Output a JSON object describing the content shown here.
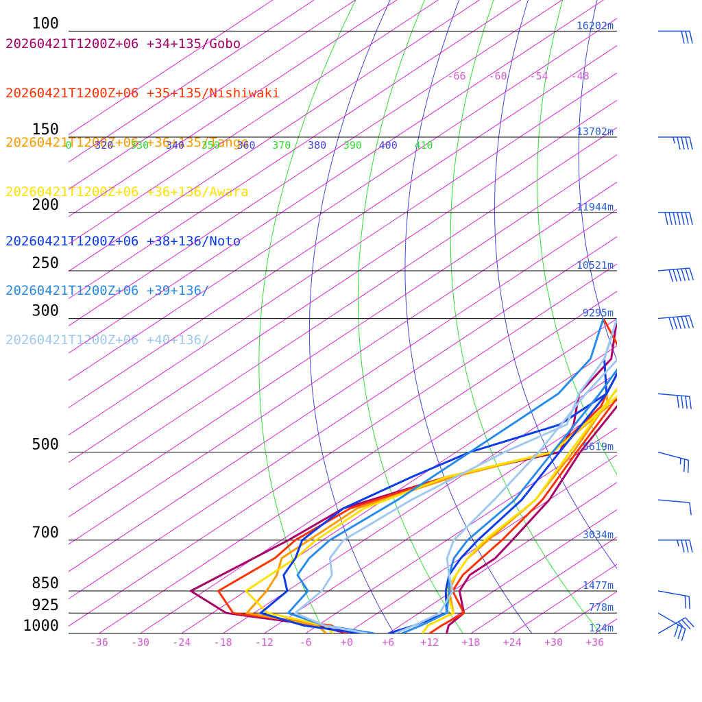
{
  "legend": [
    {
      "label": "20260421T1200Z+06 +34+135/Gobo",
      "color": "#a8006a"
    },
    {
      "label": "20260421T1200Z+06 +35+135/Nishiwaki",
      "color": "#ff3300"
    },
    {
      "label": "20260421T1200Z+06 +36+135/Tango",
      "color": "#ff9a00"
    },
    {
      "label": "20260421T1200Z+06 +36+136/Awara",
      "color": "#ffe000"
    },
    {
      "label": "20260421T1200Z+06 +38+136/Noto",
      "color": "#0a3ce8"
    },
    {
      "label": "20260421T1200Z+06 +39+136/",
      "color": "#2a8ce8"
    },
    {
      "label": "20260421T1200Z+06 +40+136/",
      "color": "#a0c8f0"
    }
  ],
  "chart_data": {
    "type": "line",
    "subtype": "skew-T log-P sounding",
    "pressure_levels": [
      {
        "p": 100,
        "label": "100",
        "height": "16202m"
      },
      {
        "p": 150,
        "label": "150",
        "height": "13702m"
      },
      {
        "p": 200,
        "label": "200",
        "height": "11944m"
      },
      {
        "p": 250,
        "label": "250",
        "height": "10521m"
      },
      {
        "p": 300,
        "label": "300",
        "height": "9295m"
      },
      {
        "p": 500,
        "label": "500",
        "height": "5619m"
      },
      {
        "p": 700,
        "label": "700",
        "height": "3034m"
      },
      {
        "p": 850,
        "label": "850",
        "height": "1477m"
      },
      {
        "p": 925,
        "label": "925",
        "height": "778m"
      },
      {
        "p": 1000,
        "label": "1000",
        "height": "124m"
      }
    ],
    "x_ticks": [
      "-36",
      "-30",
      "-24",
      "-18",
      "-12",
      "-6",
      "+0",
      "+6",
      "+12",
      "+18",
      "+24",
      "+30",
      "+36"
    ],
    "x_tick_values": [
      -36,
      -30,
      -24,
      -18,
      -12,
      -6,
      0,
      6,
      12,
      18,
      24,
      30,
      36
    ],
    "upper_temp_labels": [
      "-66",
      "-60",
      "-54",
      "-48"
    ],
    "theta_labels": [
      {
        "text": "0",
        "color": "#33dd33"
      },
      {
        "text": "320",
        "color": "#4444dd"
      },
      {
        "text": "330",
        "color": "#33dd33"
      },
      {
        "text": "340",
        "color": "#4444dd"
      },
      {
        "text": "350",
        "color": "#33dd33"
      },
      {
        "text": "360",
        "color": "#4444dd"
      },
      {
        "text": "370",
        "color": "#33dd33"
      },
      {
        "text": "380",
        "color": "#4444dd"
      },
      {
        "text": "390",
        "color": "#33dd33"
      },
      {
        "text": "400",
        "color": "#4444dd"
      },
      {
        "text": "410",
        "color": "#33dd33"
      }
    ],
    "xlim": [
      -40,
      40
    ],
    "ylim": [
      1000,
      100
    ],
    "skew_deg_per_decade_ln": 57.5,
    "series": [
      {
        "name": "20260421T1200Z+06 +34+135/Gobo",
        "color": "#a8006a",
        "temp_profile": [
          [
            1000,
            14.5
          ],
          [
            970,
            13
          ],
          [
            925,
            12.5
          ],
          [
            850,
            7
          ],
          [
            800,
            5
          ],
          [
            750,
            5
          ],
          [
            700,
            3.5
          ],
          [
            600,
            0
          ],
          [
            500,
            -6
          ],
          [
            400,
            -12
          ],
          [
            350,
            -15
          ],
          [
            300,
            -20
          ],
          [
            250,
            -28
          ],
          [
            200,
            -38
          ],
          [
            170,
            -47
          ],
          [
            150,
            -49
          ],
          [
            110,
            -62
          ],
          [
            100,
            -64
          ],
          [
            90,
            -69
          ],
          [
            80,
            -72
          ],
          [
            70,
            -76
          ],
          [
            60,
            -78
          ],
          [
            55,
            -82
          ],
          [
            52,
            -84
          ]
        ],
        "dew_profile": [
          [
            1000,
            0
          ],
          [
            970,
            -6
          ],
          [
            925,
            -22
          ],
          [
            850,
            -32
          ],
          [
            700,
            -29
          ],
          [
            620,
            -28
          ],
          [
            550,
            -20
          ],
          [
            500,
            -9
          ],
          [
            450,
            -13
          ],
          [
            400,
            -19
          ],
          [
            350,
            -22
          ],
          [
            300,
            -30
          ]
        ]
      },
      {
        "name": "20260421T1200Z+06 +35+135/Nishiwaki",
        "color": "#ff3300",
        "temp_profile": [
          [
            1000,
            12
          ],
          [
            970,
            12
          ],
          [
            925,
            12.5
          ],
          [
            850,
            6
          ],
          [
            800,
            4
          ],
          [
            750,
            3
          ],
          [
            700,
            2
          ],
          [
            600,
            -1
          ],
          [
            500,
            -6.5
          ],
          [
            400,
            -13
          ],
          [
            350,
            -16
          ],
          [
            300,
            -21
          ],
          [
            250,
            -29
          ],
          [
            200,
            -39
          ],
          [
            175,
            -48
          ],
          [
            150,
            -50
          ],
          [
            110,
            -62
          ],
          [
            100,
            -65
          ],
          [
            90,
            -70
          ],
          [
            80,
            -73
          ],
          [
            70,
            -76
          ],
          [
            60,
            -79
          ],
          [
            55,
            -82
          ],
          [
            52,
            -84
          ]
        ],
        "dew_profile": [
          [
            1000,
            0
          ],
          [
            970,
            -4
          ],
          [
            925,
            -21
          ],
          [
            850,
            -28
          ],
          [
            750,
            -27
          ],
          [
            700,
            -28
          ],
          [
            620,
            -27
          ],
          [
            550,
            -20
          ],
          [
            500,
            -10
          ],
          [
            420,
            -13
          ],
          [
            400,
            -15
          ],
          [
            350,
            -20
          ],
          [
            300,
            -32
          ]
        ]
      },
      {
        "name": "20260421T1200Z+06 +36+135/Tango",
        "color": "#ff9a00",
        "temp_profile": [
          [
            1000,
            11
          ],
          [
            970,
            10
          ],
          [
            925,
            11
          ],
          [
            850,
            5.5
          ],
          [
            800,
            3
          ],
          [
            750,
            1
          ],
          [
            700,
            0
          ],
          [
            600,
            -2
          ],
          [
            500,
            -7
          ],
          [
            400,
            -14
          ],
          [
            350,
            -17
          ],
          [
            300,
            -22
          ],
          [
            250,
            -30
          ],
          [
            200,
            -39
          ],
          [
            170,
            -47
          ],
          [
            150,
            -50
          ],
          [
            110,
            -63
          ],
          [
            100,
            -66
          ],
          [
            90,
            -71
          ],
          [
            80,
            -74
          ],
          [
            70,
            -77
          ],
          [
            60,
            -80
          ],
          [
            55,
            -82
          ],
          [
            52,
            -84
          ]
        ],
        "dew_profile": [
          [
            1000,
            -3
          ],
          [
            970,
            -6
          ],
          [
            925,
            -19
          ],
          [
            850,
            -21
          ],
          [
            800,
            -23
          ],
          [
            750,
            -26
          ],
          [
            700,
            -26
          ],
          [
            620,
            -26
          ],
          [
            550,
            -19
          ],
          [
            500,
            -10
          ],
          [
            420,
            -12
          ],
          [
            400,
            -15
          ],
          [
            350,
            -20
          ],
          [
            300,
            -28
          ]
        ]
      },
      {
        "name": "20260421T1200Z+06 +36+136/Awara",
        "color": "#ffe000",
        "temp_profile": [
          [
            1000,
            11
          ],
          [
            970,
            10
          ],
          [
            925,
            11
          ],
          [
            850,
            5
          ],
          [
            800,
            3
          ],
          [
            750,
            1
          ],
          [
            700,
            -0.5
          ],
          [
            600,
            -2
          ],
          [
            500,
            -7.5
          ],
          [
            400,
            -14
          ],
          [
            350,
            -18
          ],
          [
            300,
            -22
          ],
          [
            250,
            -30
          ],
          [
            200,
            -39
          ],
          [
            175,
            -47
          ],
          [
            150,
            -49
          ],
          [
            110,
            -63
          ],
          [
            100,
            -67
          ],
          [
            90,
            -72
          ],
          [
            80,
            -75
          ],
          [
            70,
            -78
          ],
          [
            60,
            -80
          ],
          [
            55,
            -83
          ],
          [
            52,
            -85
          ]
        ],
        "dew_profile": [
          [
            1000,
            -2
          ],
          [
            970,
            -5
          ],
          [
            925,
            -16
          ],
          [
            850,
            -24
          ],
          [
            750,
            -24
          ],
          [
            700,
            -25
          ],
          [
            620,
            -25
          ],
          [
            550,
            -20
          ],
          [
            500,
            -10
          ],
          [
            400,
            -13
          ],
          [
            350,
            -19
          ],
          [
            300,
            -27
          ]
        ]
      },
      {
        "name": "20260421T1200Z+06 +38+136/Noto",
        "color": "#0a3ce8",
        "temp_profile": [
          [
            1000,
            6
          ],
          [
            970,
            8
          ],
          [
            925,
            10
          ],
          [
            850,
            5
          ],
          [
            800,
            2
          ],
          [
            750,
            0
          ],
          [
            700,
            -1.5
          ],
          [
            600,
            -4
          ],
          [
            500,
            -9
          ],
          [
            400,
            -15
          ],
          [
            350,
            -20
          ],
          [
            300,
            -24
          ],
          [
            250,
            -32
          ],
          [
            200,
            -40
          ],
          [
            175,
            -48
          ],
          [
            150,
            -51
          ],
          [
            110,
            -63
          ],
          [
            100,
            -65
          ],
          [
            90,
            -68
          ],
          [
            80,
            -70
          ],
          [
            70,
            -73
          ],
          [
            60,
            -76
          ],
          [
            55,
            -80
          ],
          [
            52,
            -82
          ]
        ],
        "dew_profile": [
          [
            1000,
            2
          ],
          [
            970,
            -8
          ],
          [
            925,
            -17
          ],
          [
            850,
            -18
          ],
          [
            800,
            -22
          ],
          [
            750,
            -24
          ],
          [
            700,
            -27
          ],
          [
            620,
            -28
          ],
          [
            550,
            -25
          ],
          [
            500,
            -22
          ],
          [
            450,
            -15
          ],
          [
            400,
            -15
          ],
          [
            350,
            -23
          ],
          [
            300,
            -30
          ]
        ]
      },
      {
        "name": "20260421T1200Z+06 +39+136/",
        "color": "#2a8ce8",
        "temp_profile": [
          [
            1000,
            8
          ],
          [
            970,
            9
          ],
          [
            925,
            10
          ],
          [
            850,
            5.5
          ],
          [
            800,
            2
          ],
          [
            750,
            -1
          ],
          [
            700,
            -3
          ],
          [
            600,
            -5
          ],
          [
            500,
            -10
          ],
          [
            400,
            -16
          ],
          [
            350,
            -20
          ],
          [
            300,
            -25
          ],
          [
            250,
            -33
          ],
          [
            200,
            -40
          ],
          [
            175,
            -48
          ],
          [
            150,
            -53
          ],
          [
            110,
            -62
          ],
          [
            100,
            -63
          ],
          [
            90,
            -66
          ],
          [
            80,
            -69
          ],
          [
            70,
            -72
          ],
          [
            60,
            -76
          ],
          [
            55,
            -80
          ],
          [
            52,
            -82
          ]
        ],
        "dew_profile": [
          [
            1000,
            4
          ],
          [
            970,
            -5
          ],
          [
            925,
            -13
          ],
          [
            850,
            -15
          ],
          [
            800,
            -20
          ],
          [
            750,
            -22
          ],
          [
            700,
            -23
          ],
          [
            600,
            -22
          ],
          [
            500,
            -22
          ],
          [
            400,
            -22
          ],
          [
            350,
            -25
          ],
          [
            300,
            -32
          ]
        ]
      },
      {
        "name": "20260421T1200Z+06 +40+136/",
        "color": "#a0c8f0",
        "temp_profile": [
          [
            1000,
            7
          ],
          [
            970,
            8
          ],
          [
            925,
            9
          ],
          [
            850,
            6
          ],
          [
            800,
            2
          ],
          [
            750,
            -2
          ],
          [
            700,
            -5
          ],
          [
            600,
            -8
          ],
          [
            500,
            -12
          ],
          [
            400,
            -18
          ],
          [
            350,
            -21
          ],
          [
            300,
            -26
          ],
          [
            250,
            -33
          ],
          [
            200,
            -40
          ],
          [
            175,
            -46
          ],
          [
            150,
            -50
          ],
          [
            110,
            -60
          ],
          [
            100,
            -61
          ],
          [
            90,
            -65
          ],
          [
            80,
            -67
          ],
          [
            70,
            -69
          ],
          [
            60,
            -73
          ],
          [
            55,
            -77
          ],
          [
            52,
            -80
          ]
        ],
        "dew_profile": [
          [
            1000,
            3
          ],
          [
            970,
            -5
          ],
          [
            925,
            -12
          ],
          [
            850,
            -13
          ],
          [
            800,
            -15
          ],
          [
            750,
            -19
          ],
          [
            700,
            -21
          ],
          [
            600,
            -20
          ],
          [
            500,
            -17
          ],
          [
            450,
            -14
          ],
          [
            400,
            -19
          ],
          [
            350,
            -23
          ],
          [
            300,
            -30
          ]
        ]
      }
    ],
    "wind_barbs": [
      {
        "p": 1000,
        "dir": 240,
        "kt": 25
      },
      {
        "p": 925,
        "dir": 300,
        "kt": 30
      },
      {
        "p": 850,
        "dir": 280,
        "kt": 20
      },
      {
        "p": 700,
        "dir": 270,
        "kt": 35
      },
      {
        "p": 600,
        "dir": 275,
        "kt": 10
      },
      {
        "p": 500,
        "dir": 285,
        "kt": 25
      },
      {
        "p": 400,
        "dir": 275,
        "kt": 40
      },
      {
        "p": 300,
        "dir": 265,
        "kt": 60
      },
      {
        "p": 250,
        "dir": 265,
        "kt": 60
      },
      {
        "p": 200,
        "dir": 270,
        "kt": 70
      },
      {
        "p": 150,
        "dir": 270,
        "kt": 45
      },
      {
        "p": 100,
        "dir": 270,
        "kt": 30
      },
      {
        "p": 80,
        "dir": 290,
        "kt": 10
      },
      {
        "p": 60,
        "dir": 270,
        "kt": 35
      }
    ]
  }
}
